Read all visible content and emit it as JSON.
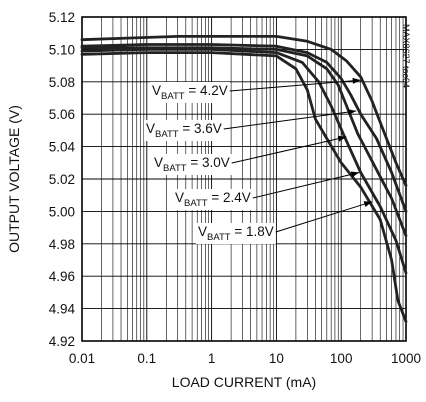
{
  "chart_data": {
    "type": "line",
    "title": "",
    "code": "MAX8627 toc04",
    "xlabel": "LOAD CURRENT (mA)",
    "ylabel": "OUTPUT VOLTAGE (V)",
    "xscale": "log",
    "xlim": [
      0.01,
      1000
    ],
    "ylim": [
      4.92,
      5.12
    ],
    "x_ticks": [
      "0.01",
      "0.1",
      "1",
      "10",
      "100",
      "1000"
    ],
    "y_ticks": [
      "5.12",
      "5.10",
      "5.08",
      "5.06",
      "5.04",
      "5.02",
      "5.00",
      "4.98",
      "4.96",
      "4.94",
      "4.92"
    ],
    "grid": true,
    "series": [
      {
        "name_main": "V",
        "name_sub": "BATT",
        "name_val": " = 4.2V",
        "points": [
          [
            0.01,
            5.106
          ],
          [
            0.05,
            5.107
          ],
          [
            0.3,
            5.108
          ],
          [
            2,
            5.108
          ],
          [
            10,
            5.108
          ],
          [
            30,
            5.105
          ],
          [
            70,
            5.1
          ],
          [
            120,
            5.093
          ],
          [
            200,
            5.083
          ],
          [
            300,
            5.068
          ],
          [
            500,
            5.045
          ],
          [
            700,
            5.03
          ],
          [
            1000,
            5.016
          ]
        ]
      },
      {
        "name_main": "V",
        "name_sub": "BATT",
        "name_val": " = 3.6V",
        "points": [
          [
            0.01,
            5.102
          ],
          [
            0.1,
            5.103
          ],
          [
            1,
            5.103
          ],
          [
            10,
            5.102
          ],
          [
            30,
            5.098
          ],
          [
            60,
            5.092
          ],
          [
            100,
            5.082
          ],
          [
            140,
            5.072
          ],
          [
            200,
            5.06
          ],
          [
            350,
            5.045
          ],
          [
            600,
            5.024
          ],
          [
            1000,
            5.0
          ]
        ]
      },
      {
        "name_main": "V",
        "name_sub": "BATT",
        "name_val": " = 3.0V",
        "points": [
          [
            0.01,
            5.101
          ],
          [
            0.1,
            5.101
          ],
          [
            1,
            5.101
          ],
          [
            10,
            5.1
          ],
          [
            30,
            5.096
          ],
          [
            60,
            5.088
          ],
          [
            90,
            5.078
          ],
          [
            130,
            5.062
          ],
          [
            180,
            5.048
          ],
          [
            300,
            5.031
          ],
          [
            600,
            5.008
          ],
          [
            1000,
            4.985
          ]
        ]
      },
      {
        "name_main": "V",
        "name_sub": "BATT",
        "name_val": " = 2.4V",
        "points": [
          [
            0.01,
            5.099
          ],
          [
            0.1,
            5.1
          ],
          [
            1,
            5.1
          ],
          [
            10,
            5.098
          ],
          [
            25,
            5.092
          ],
          [
            45,
            5.08
          ],
          [
            70,
            5.065
          ],
          [
            110,
            5.047
          ],
          [
            200,
            5.024
          ],
          [
            400,
            5.003
          ],
          [
            700,
            4.982
          ],
          [
            1000,
            4.962
          ]
        ]
      },
      {
        "name_main": "V",
        "name_sub": "BATT",
        "name_val": " = 1.8V",
        "points": [
          [
            0.01,
            5.097
          ],
          [
            0.1,
            5.098
          ],
          [
            1,
            5.098
          ],
          [
            10,
            5.096
          ],
          [
            20,
            5.088
          ],
          [
            30,
            5.075
          ],
          [
            40,
            5.057
          ],
          [
            60,
            5.045
          ],
          [
            100,
            5.03
          ],
          [
            200,
            5.015
          ],
          [
            400,
            4.995
          ],
          [
            600,
            4.97
          ],
          [
            750,
            4.945
          ],
          [
            1000,
            4.932
          ]
        ]
      }
    ],
    "annotations": [
      {
        "series": 0,
        "arrow_to": [
          200,
          5.081
        ]
      },
      {
        "series": 1,
        "arrow_to": [
          170,
          5.062
        ]
      },
      {
        "series": 2,
        "arrow_to": [
          120,
          5.046
        ]
      },
      {
        "series": 3,
        "arrow_to": [
          190,
          5.024
        ]
      },
      {
        "series": 4,
        "arrow_to": [
          300,
          5.006
        ]
      }
    ]
  }
}
